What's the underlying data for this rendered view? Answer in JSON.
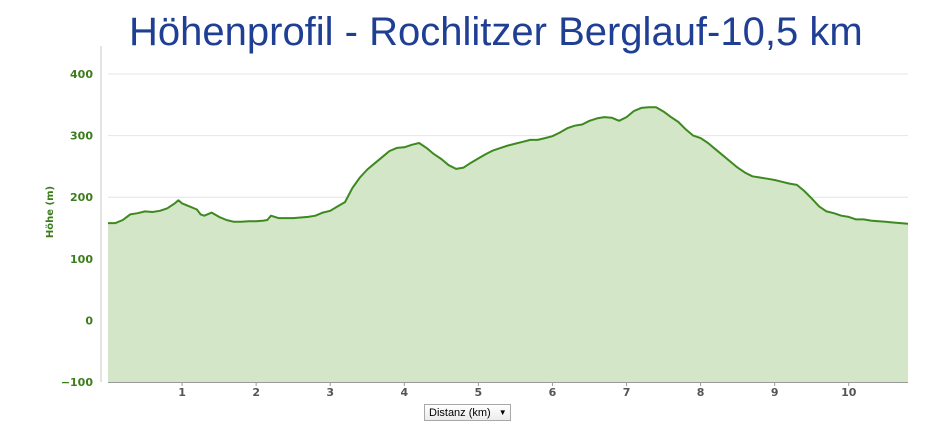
{
  "chart_data": {
    "type": "area",
    "title": "Höhenprofil - Rochlitzer Berglauf-10,5 km",
    "ylabel": "Höhe (m)",
    "xlabel_select": "Distanz (km)",
    "xlim": [
      0,
      10.8
    ],
    "ylim": [
      -100,
      400
    ],
    "x_ticks": [
      "1",
      "2",
      "3",
      "4",
      "5",
      "6",
      "7",
      "8",
      "9",
      "10"
    ],
    "y_ticks": [
      "400",
      "300",
      "200",
      "100",
      "0",
      "−100"
    ],
    "grid": true,
    "colors": {
      "line": "#3c8a1f",
      "fill": "#d4e6c8",
      "grid": "#e4e4e4",
      "title": "#1f3f94"
    },
    "series": [
      {
        "x": [
          0.0,
          0.1,
          0.2,
          0.3,
          0.4,
          0.5,
          0.6,
          0.7,
          0.8,
          0.9,
          0.95,
          1.0,
          1.1,
          1.2,
          1.25,
          1.3,
          1.4,
          1.5,
          1.6,
          1.7,
          1.8,
          1.9,
          2.0,
          2.1,
          2.15,
          2.2,
          2.3,
          2.4,
          2.5,
          2.6,
          2.7,
          2.8,
          2.9,
          3.0,
          3.1,
          3.2,
          3.3,
          3.4,
          3.5,
          3.6,
          3.7,
          3.8,
          3.9,
          4.0,
          4.1,
          4.2,
          4.3,
          4.4,
          4.5,
          4.6,
          4.7,
          4.8,
          4.9,
          5.0,
          5.1,
          5.2,
          5.3,
          5.4,
          5.5,
          5.6,
          5.7,
          5.8,
          5.9,
          6.0,
          6.1,
          6.2,
          6.3,
          6.4,
          6.5,
          6.6,
          6.7,
          6.8,
          6.9,
          7.0,
          7.1,
          7.2,
          7.3,
          7.4,
          7.5,
          7.6,
          7.7,
          7.8,
          7.9,
          8.0,
          8.1,
          8.2,
          8.3,
          8.4,
          8.5,
          8.6,
          8.7,
          8.8,
          8.9,
          9.0,
          9.1,
          9.2,
          9.3,
          9.4,
          9.5,
          9.6,
          9.7,
          9.8,
          9.9,
          10.0,
          10.1,
          10.2,
          10.3,
          10.4,
          10.5,
          10.6,
          10.7,
          10.8
        ],
        "y": [
          158,
          158,
          163,
          172,
          174,
          177,
          176,
          178,
          182,
          190,
          195,
          190,
          185,
          180,
          172,
          170,
          175,
          168,
          163,
          160,
          160,
          161,
          161,
          162,
          163,
          170,
          166,
          166,
          166,
          167,
          168,
          170,
          175,
          178,
          185,
          192,
          215,
          232,
          245,
          255,
          265,
          275,
          280,
          281,
          285,
          288,
          280,
          270,
          262,
          252,
          246,
          248,
          256,
          263,
          270,
          276,
          280,
          284,
          287,
          290,
          293,
          293,
          296,
          299,
          305,
          312,
          316,
          318,
          324,
          328,
          330,
          329,
          324,
          330,
          340,
          345,
          346,
          346,
          339,
          330,
          322,
          310,
          300,
          296,
          288,
          278,
          268,
          258,
          248,
          240,
          234,
          232,
          230,
          228,
          225,
          222,
          220,
          210,
          198,
          185,
          177,
          174,
          170,
          168,
          164,
          164,
          162,
          161,
          160,
          159,
          158,
          157
        ]
      }
    ]
  },
  "ui": {
    "x_select_caret": "▼"
  }
}
